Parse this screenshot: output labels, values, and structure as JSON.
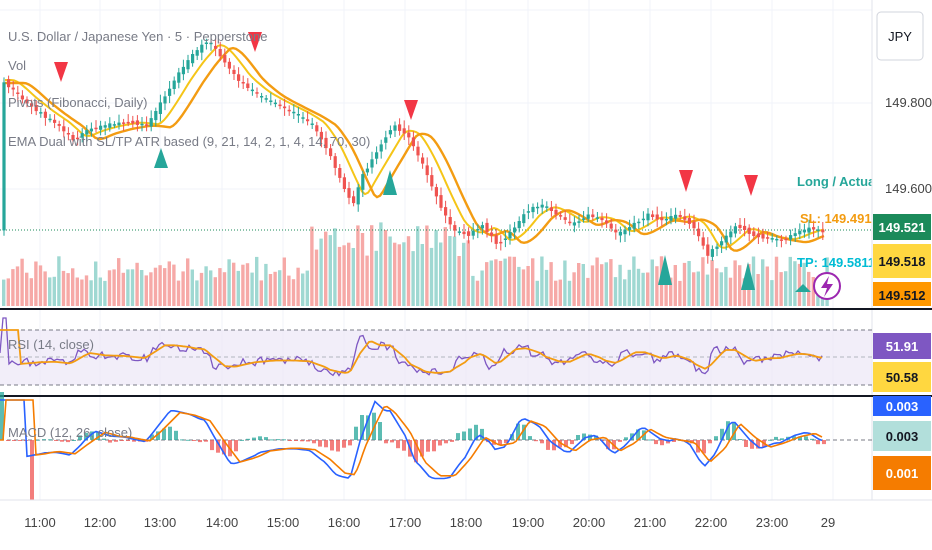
{
  "header": {
    "symbol_title": "U.S. Dollar / Japanese Yen · 5 · Pepperstone",
    "vol_label": "Vol",
    "pivots_label": "Pivots (Fibonacci, Daily)",
    "ema_label": "EMA Dual with SL/TP ATR based (9, 21, 14, 2, 1, 4, 14, 70, 30)"
  },
  "currency_button": "JPY",
  "colors": {
    "bull": "#26a69a",
    "bear": "#ef5350",
    "ema_fast": "#f5c518",
    "ema_slow": "#f39c12",
    "rsi_line": "#7e57c2",
    "rsi_ma": "#f39c12",
    "macd_line": "#2962ff",
    "signal_line": "#f57c00",
    "price_badge": "#1b8a5a",
    "sl_badge": "#ffd740",
    "tp_badge": "#ff9800"
  },
  "price_axis": {
    "labels": [
      "149.800",
      "149.600"
    ]
  },
  "price_badges": {
    "current": "149.521",
    "sl": "149.518",
    "tp": "149.512"
  },
  "annotations": {
    "long_actual": "Long / Actual",
    "sl_text": "SL: 149.491",
    "tp_text": "TP: 149.5811"
  },
  "rsi_panel": {
    "label": "RSI (14, close)",
    "value_badge": "51.91",
    "ma_badge": "50.58"
  },
  "macd_panel": {
    "label": "MACD (12, 26, close)",
    "macd_badge": "0.003",
    "signal_badge": "0.003",
    "hist_badge": "0.001"
  },
  "time_axis": {
    "labels": [
      "11:00",
      "12:00",
      "13:00",
      "14:00",
      "15:00",
      "16:00",
      "17:00",
      "18:00",
      "19:00",
      "20:00",
      "21:00",
      "22:00",
      "23:00",
      "29"
    ]
  },
  "signals": {
    "sell_icon": "red-down-triangle",
    "buy_icon": "green-up-triangle"
  }
}
